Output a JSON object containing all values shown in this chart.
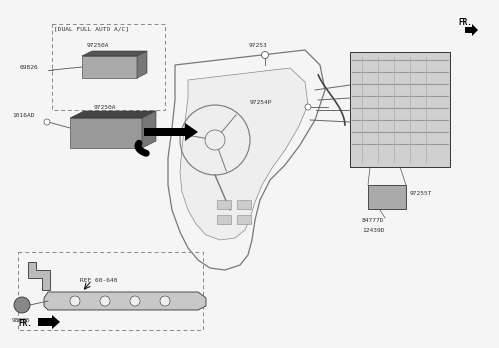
{
  "bg_color": "#f5f5f5",
  "line_color": "#555555",
  "dark_color": "#333333",
  "light_gray": "#bbbbbb",
  "mid_gray": "#888888",
  "text_color": "#222222",
  "labels": {
    "dual_ac": "[DUAL FULL AUTO A/C]",
    "part_97250A_top": "97250A",
    "part_69826": "69826",
    "part_97250A_main": "97250A",
    "part_1016AD": "1016AD",
    "part_97253": "97253",
    "part_97254P": "97254P",
    "part_97255T": "97255T",
    "part_84777D": "84777D",
    "part_12439D": "12439D",
    "part_98985": "98985",
    "ref_label": "REF 60-640",
    "fr_tr": "FR.",
    "fr_bl": "FR."
  }
}
